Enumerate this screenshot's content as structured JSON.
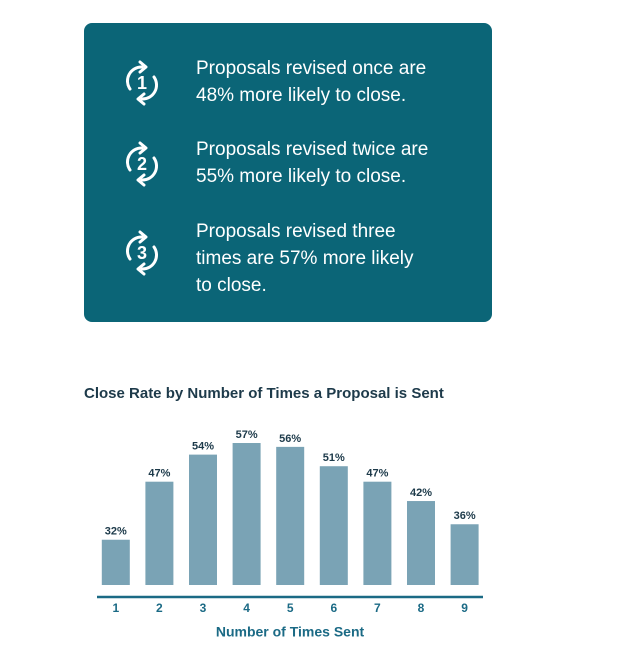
{
  "callouts": [
    {
      "icon": "1",
      "lines": [
        "Proposals revised once are",
        "48% more likely to close."
      ]
    },
    {
      "icon": "2",
      "lines": [
        "Proposals revised twice are",
        "55% more likely to close."
      ]
    },
    {
      "icon": "3",
      "lines": [
        "Proposals revised three",
        "times are 57% more likely",
        "to close."
      ]
    }
  ],
  "chart_data": {
    "type": "bar",
    "title": "Close Rate by Number of Times a Proposal is Sent",
    "x_label": "Number of Times Sent",
    "categories": [
      "1",
      "2",
      "3",
      "4",
      "5",
      "6",
      "7",
      "8",
      "9"
    ],
    "values": [
      32,
      47,
      54,
      57,
      56,
      51,
      47,
      42,
      36
    ],
    "value_labels": [
      "32%",
      "47%",
      "54%",
      "57%",
      "56%",
      "51%",
      "47%",
      "42%",
      "36%"
    ],
    "color": "#7aa3b5",
    "ylim": [
      20.3,
      60
    ],
    "grid": false
  }
}
